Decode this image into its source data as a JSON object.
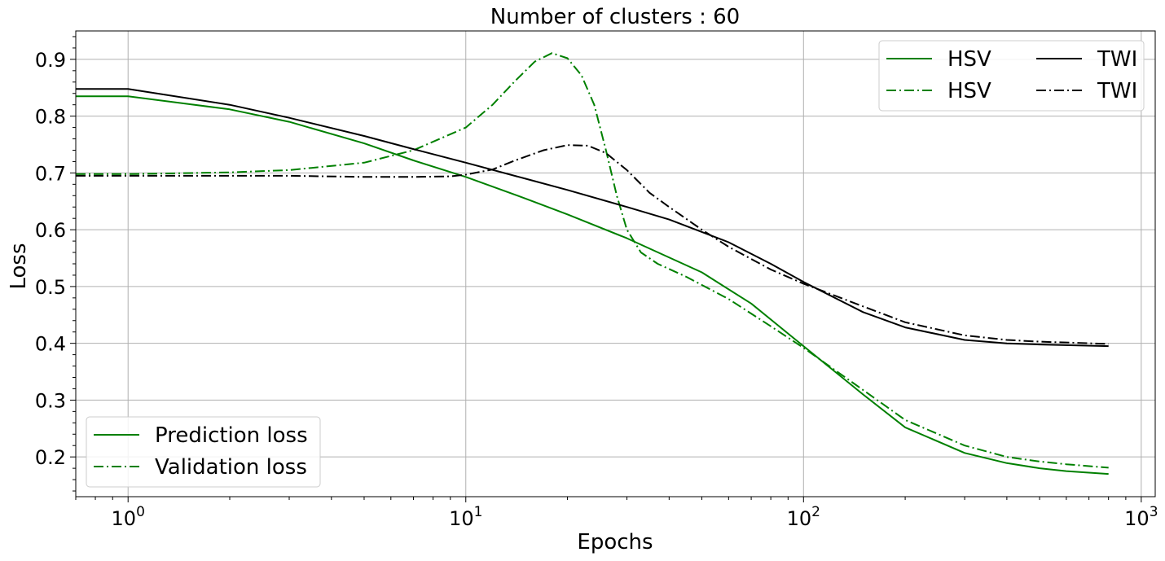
{
  "chart_data": {
    "type": "line",
    "title": "Number of clusters : 60",
    "xlabel": "Epochs",
    "ylabel": "Loss",
    "x_scale": "log",
    "xlim": [
      0.7,
      1100
    ],
    "ylim": [
      0.13,
      0.95
    ],
    "grid": true,
    "x_ticks": [
      1,
      10,
      100,
      1000
    ],
    "x_tick_labels": [
      {
        "base": "10",
        "exp": "0"
      },
      {
        "base": "10",
        "exp": "1"
      },
      {
        "base": "10",
        "exp": "2"
      },
      {
        "base": "10",
        "exp": "3"
      }
    ],
    "y_ticks": [
      0.2,
      0.3,
      0.4,
      0.5,
      0.6,
      0.7,
      0.8,
      0.9
    ],
    "y_tick_labels": [
      "0.2",
      "0.3",
      "0.4",
      "0.5",
      "0.6",
      "0.7",
      "0.8",
      "0.9"
    ],
    "legends": [
      {
        "placement": "top-right",
        "columns": 2,
        "entries": [
          {
            "label": "HSV",
            "color": "#008000",
            "style": "solid"
          },
          {
            "label": "HSV",
            "color": "#008000",
            "style": "dashdot"
          },
          {
            "label": "TWI",
            "color": "#000000",
            "style": "solid"
          },
          {
            "label": "TWI",
            "color": "#000000",
            "style": "dashdot"
          }
        ]
      },
      {
        "placement": "lower-left",
        "columns": 1,
        "entries": [
          {
            "label": "Prediction loss",
            "color": "#008000",
            "style": "solid"
          },
          {
            "label": "Validation loss",
            "color": "#008000",
            "style": "dashdot"
          }
        ]
      }
    ],
    "series": [
      {
        "color": "#008000",
        "style": "solid",
        "points": [
          [
            0.7,
            0.835
          ],
          [
            1,
            0.835
          ],
          [
            2,
            0.812
          ],
          [
            3,
            0.79
          ],
          [
            5,
            0.752
          ],
          [
            7,
            0.722
          ],
          [
            10,
            0.693
          ],
          [
            15,
            0.655
          ],
          [
            20,
            0.627
          ],
          [
            30,
            0.585
          ],
          [
            50,
            0.525
          ],
          [
            70,
            0.47
          ],
          [
            100,
            0.395
          ],
          [
            150,
            0.31
          ],
          [
            200,
            0.252
          ],
          [
            300,
            0.207
          ],
          [
            400,
            0.189
          ],
          [
            500,
            0.18
          ],
          [
            600,
            0.175
          ],
          [
            800,
            0.17
          ]
        ]
      },
      {
        "color": "#008000",
        "style": "dashdot",
        "points": [
          [
            0.7,
            0.698
          ],
          [
            1,
            0.698
          ],
          [
            2,
            0.701
          ],
          [
            3,
            0.705
          ],
          [
            5,
            0.718
          ],
          [
            7,
            0.74
          ],
          [
            10,
            0.78
          ],
          [
            12,
            0.82
          ],
          [
            14,
            0.862
          ],
          [
            16,
            0.896
          ],
          [
            18,
            0.911
          ],
          [
            20,
            0.902
          ],
          [
            22,
            0.872
          ],
          [
            24,
            0.82
          ],
          [
            26,
            0.74
          ],
          [
            28,
            0.66
          ],
          [
            30,
            0.6
          ],
          [
            33,
            0.56
          ],
          [
            37,
            0.54
          ],
          [
            45,
            0.517
          ],
          [
            60,
            0.478
          ],
          [
            80,
            0.43
          ],
          [
            100,
            0.392
          ],
          [
            150,
            0.318
          ],
          [
            200,
            0.265
          ],
          [
            300,
            0.22
          ],
          [
            400,
            0.2
          ],
          [
            500,
            0.192
          ],
          [
            600,
            0.187
          ],
          [
            800,
            0.181
          ]
        ]
      },
      {
        "color": "#000000",
        "style": "solid",
        "points": [
          [
            0.7,
            0.848
          ],
          [
            1,
            0.848
          ],
          [
            2,
            0.82
          ],
          [
            3,
            0.797
          ],
          [
            5,
            0.765
          ],
          [
            7,
            0.742
          ],
          [
            10,
            0.718
          ],
          [
            15,
            0.69
          ],
          [
            20,
            0.67
          ],
          [
            30,
            0.64
          ],
          [
            40,
            0.618
          ],
          [
            60,
            0.578
          ],
          [
            80,
            0.54
          ],
          [
            100,
            0.508
          ],
          [
            150,
            0.455
          ],
          [
            200,
            0.428
          ],
          [
            300,
            0.406
          ],
          [
            400,
            0.4
          ],
          [
            500,
            0.398
          ],
          [
            800,
            0.395
          ]
        ]
      },
      {
        "color": "#000000",
        "style": "dashdot",
        "points": [
          [
            0.7,
            0.695
          ],
          [
            1,
            0.695
          ],
          [
            2,
            0.695
          ],
          [
            3,
            0.695
          ],
          [
            5,
            0.693
          ],
          [
            7,
            0.693
          ],
          [
            9,
            0.694
          ],
          [
            10,
            0.697
          ],
          [
            12,
            0.706
          ],
          [
            14,
            0.722
          ],
          [
            17,
            0.74
          ],
          [
            20,
            0.749
          ],
          [
            23,
            0.748
          ],
          [
            26,
            0.735
          ],
          [
            30,
            0.705
          ],
          [
            35,
            0.665
          ],
          [
            40,
            0.64
          ],
          [
            50,
            0.6
          ],
          [
            60,
            0.57
          ],
          [
            80,
            0.53
          ],
          [
            100,
            0.505
          ],
          [
            150,
            0.465
          ],
          [
            200,
            0.437
          ],
          [
            300,
            0.414
          ],
          [
            400,
            0.406
          ],
          [
            500,
            0.403
          ],
          [
            800,
            0.399
          ]
        ]
      }
    ]
  }
}
